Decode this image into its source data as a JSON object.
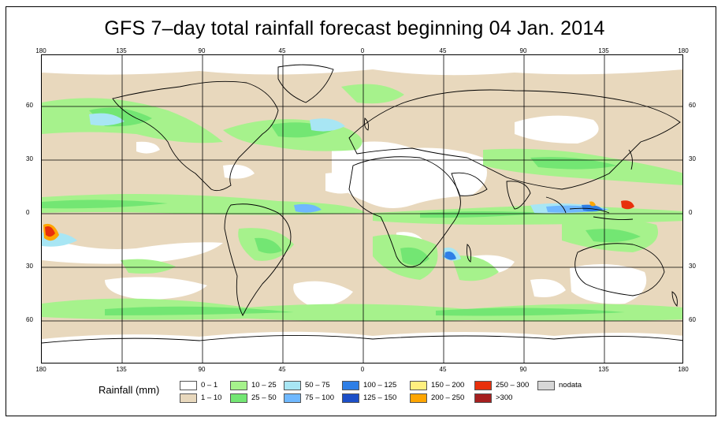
{
  "title": "GFS 7–day total rainfall forecast beginning 04 Jan. 2014",
  "axes": {
    "lon_ticks": [
      "180",
      "135",
      "90",
      "45",
      "0",
      "45",
      "90",
      "135",
      "180"
    ],
    "lat_ticks": [
      "60",
      "30",
      "0",
      "30",
      "60"
    ]
  },
  "legend": {
    "title": "Rainfall (mm)",
    "items": [
      {
        "label": "0 – 1",
        "color": "#ffffff"
      },
      {
        "label": "1 – 10",
        "color": "#e8d8bd"
      },
      {
        "label": "10 – 25",
        "color": "#a6f28c"
      },
      {
        "label": "25 – 50",
        "color": "#73e673"
      },
      {
        "label": "50 – 75",
        "color": "#a8e6f4"
      },
      {
        "label": "75 – 100",
        "color": "#6fb8ff"
      },
      {
        "label": "100 – 125",
        "color": "#2f7fe6"
      },
      {
        "label": "125 – 150",
        "color": "#1c4fc7"
      },
      {
        "label": "150 – 200",
        "color": "#fff080"
      },
      {
        "label": "200 – 250",
        "color": "#ffa500"
      },
      {
        "label": "250 – 300",
        "color": "#e8300c"
      },
      {
        "label": ">300",
        "color": "#a51f1f"
      },
      {
        "label": "nodata",
        "color": "#d6d6d6"
      }
    ]
  },
  "colors": {
    "border": "#000000",
    "coast": "#000000",
    "grid": "#000000"
  }
}
